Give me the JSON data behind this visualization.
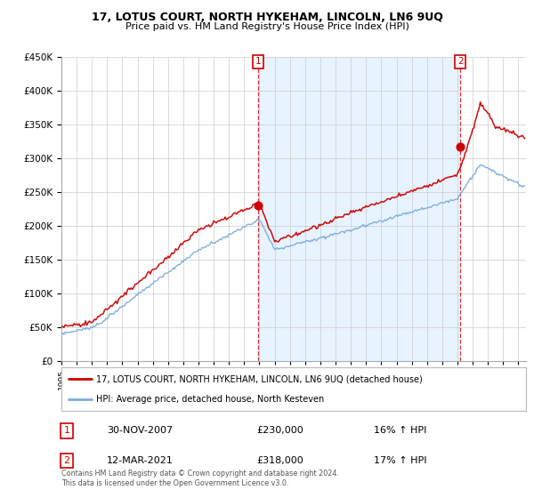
{
  "title": "17, LOTUS COURT, NORTH HYKEHAM, LINCOLN, LN6 9UQ",
  "subtitle": "Price paid vs. HM Land Registry's House Price Index (HPI)",
  "legend_line1": "17, LOTUS COURT, NORTH HYKEHAM, LINCOLN, LN6 9UQ (detached house)",
  "legend_line2": "HPI: Average price, detached house, North Kesteven",
  "annotation1_label": "1",
  "annotation1_date": "30-NOV-2007",
  "annotation1_price": "£230,000",
  "annotation1_hpi": "16% ↑ HPI",
  "annotation1_year": 2007.92,
  "annotation1_value": 230000,
  "annotation2_label": "2",
  "annotation2_date": "12-MAR-2021",
  "annotation2_price": "£318,000",
  "annotation2_hpi": "17% ↑ HPI",
  "annotation2_year": 2021.2,
  "annotation2_value": 318000,
  "footer": "Contains HM Land Registry data © Crown copyright and database right 2024.\nThis data is licensed under the Open Government Licence v3.0.",
  "ylim": [
    0,
    450000
  ],
  "xlim_start": 1995,
  "xlim_end": 2025.5,
  "red_color": "#cc0000",
  "blue_color": "#7aacdc",
  "shade_color": "#ddeeff",
  "dashed_color": "#cc0000",
  "background_color": "#ffffff",
  "grid_color": "#cccccc"
}
